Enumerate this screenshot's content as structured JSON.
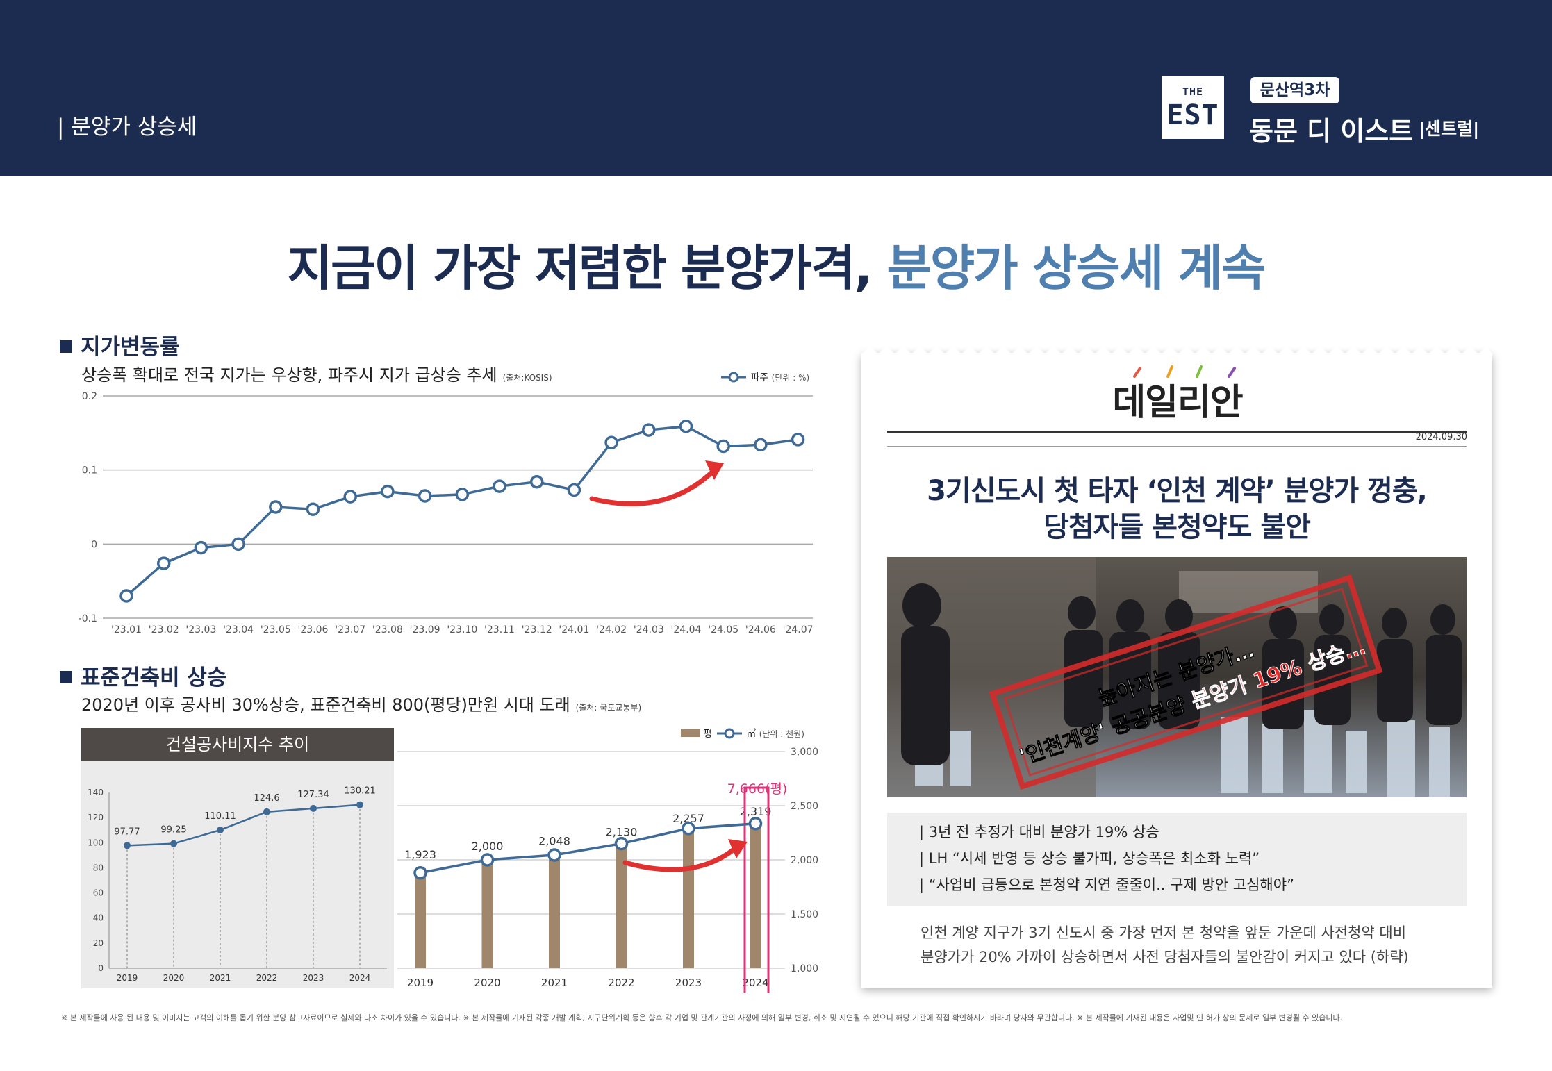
{
  "header": {
    "section_label": "| 분양가 상승세",
    "logo_top": "THE",
    "logo_bottom": "EST",
    "badge": "문산역3차",
    "brand": "동문 디 이스트",
    "brand_sub": "|센트럴|",
    "bg_color": "#1c2b50"
  },
  "headline": {
    "main": "지금이 가장 저렴한 분양가격, ",
    "accent": "분양가 상승세 계속",
    "accent_color": "#4e7fae"
  },
  "land": {
    "title": "지가변동률",
    "subtitle": "상승폭 확대로 전국 지가는 우상향, 파주시 지가 급상승 추세",
    "source": "(출처:KOSIS)",
    "legend_label": "파주",
    "legend_unit": "(단위 : %)"
  },
  "cost": {
    "title": "표준건축비 상승",
    "subtitle": "2020년 이후 공사비 30%상승, 표준건축비 800(평당)만원 시대 도래",
    "source": "(출처: 국토교통부)",
    "index_title": "건설공사비지수 추이",
    "legend_bar": "평",
    "legend_line": "㎡",
    "legend_unit": "(단위 : 천원)",
    "callout": "7,666(평)"
  },
  "chart_data": [
    {
      "type": "line",
      "title": "",
      "series": [
        {
          "name": "파주",
          "values": [
            -0.07,
            -0.026,
            -0.005,
            0.0,
            0.05,
            0.047,
            0.064,
            0.071,
            0.065,
            0.067,
            0.078,
            0.084,
            0.073,
            0.137,
            0.154,
            0.159,
            0.132,
            0.134,
            0.141
          ]
        }
      ],
      "x": [
        "'23.01",
        "'23.02",
        "'23.03",
        "'23.04",
        "'23.05",
        "'23.06",
        "'23.07",
        "'23.08",
        "'23.09",
        "'23.10",
        "'23.11",
        "'23.12",
        "'24.01",
        "'24.02",
        "'24.03",
        "'24.04",
        "'24.05",
        "'24.06",
        "'24.07"
      ],
      "yticks": [
        "0.2",
        "0.1",
        "0",
        "-0.1"
      ],
      "ylim": [
        -0.1,
        0.2
      ],
      "grid": true,
      "legend": "top-right",
      "color": "#3f6a96"
    },
    {
      "type": "line",
      "title": "건설공사비지수 추이",
      "x": [
        "2019",
        "2020",
        "2021",
        "2022",
        "2023",
        "2024"
      ],
      "series": [
        {
          "name": "",
          "values": [
            97.77,
            99.25,
            110.11,
            124.6,
            127.34,
            130.21
          ]
        }
      ],
      "value_labels": [
        "97.77",
        "99.25",
        "110.11",
        "124.6",
        "127.34",
        "130.21"
      ],
      "yticks": [
        "140",
        "120",
        "100",
        "80",
        "60",
        "40",
        "20",
        "0"
      ],
      "ylim": [
        0,
        140
      ],
      "color": "#3f6a96"
    },
    {
      "type": "bar",
      "categories": [
        "2019",
        "2020",
        "2021",
        "2022",
        "2023",
        "2024"
      ],
      "series": [
        {
          "name": "평",
          "type": "bar",
          "values": [
            1923,
            2000,
            2048,
            2130,
            2257,
            2319
          ],
          "labels": [
            "1,923",
            "2,000",
            "2,048",
            "2,130",
            "2,257",
            "2,319"
          ],
          "color": "#a0866a"
        },
        {
          "name": "㎡",
          "type": "line",
          "values": [
            1880,
            2000,
            2045,
            2150,
            2290,
            2335
          ],
          "color": "#3f6a96"
        }
      ],
      "ylim": [
        1000,
        3000
      ],
      "yticks": [
        "3,000",
        "2,500",
        "2,000",
        "1,500",
        "1,000"
      ],
      "legend": "top-right"
    }
  ],
  "news": {
    "paper_name": "데일리안",
    "date": "2024.09.30",
    "headline_1": "3기신도시 첫 타자 ‘인천 계약’ 분양가 껑충,",
    "headline_2": "당첨자들 본청약도 불안",
    "stamp_line_1": "높아지는 분양가…",
    "stamp_line_2a": "'인천계양' 공공분양 ",
    "stamp_line_2b": "분양가 19% 상승…",
    "bullets": [
      "|  3년 전 추정가 대비 분양가 19% 상승",
      "|  LH “시세 반영 등 상승 불가피, 상승폭은 최소화 노력”",
      "|  “사업비 급등으로 본청약 지연 줄줄이.. 구제 방안 고심해야”"
    ],
    "body_1": "인천 계양 지구가 3기 신도시 중 가장 먼저 본 청약을 앞둔 가운데 사전청약 대비",
    "body_2": "분양가가 20% 가까이 상승하면서 사전 당첨자들의 불안감이 커지고 있다 (하략)"
  },
  "footer": "※ 본 제작물에 사용 된 내용 및 이미지는 고객의 이해를 돕기 위한 분양 참고자료이므로 실제와 다소 차이가 있을 수 있습니다. ※ 본 제작물에 기재된 각종 개발 계획, 지구단위계획 등은 향후 각 기업 및 관계기관의 사정에 의해 일부 변경, 취소 및 지연될 수 있으니 해당 기관에 직접 확인하시기 바라며 당사와 무관합니다. ※ 본 제작물에 기재된 내용은 사업및 인 허가 상의 문제로 일부 변경될 수 있습니다."
}
